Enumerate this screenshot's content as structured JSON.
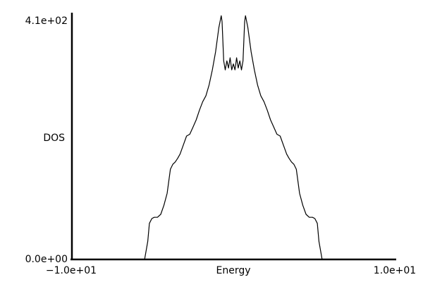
{
  "chart_data": {
    "type": "line",
    "xlabel": "Energy",
    "ylabel": "DOS",
    "xlim": [
      -10,
      10
    ],
    "ylim": [
      0,
      410
    ],
    "xtick_labels": [
      "−1.0e+01",
      "1.0e+01"
    ],
    "ytick_labels": [
      "0.0e+00",
      "4.1e+02"
    ],
    "grid": false,
    "line_color": "#000000",
    "series": [
      {
        "x": [
          -10.0,
          -5.5,
          -5.3,
          -5.2,
          -5.05,
          -4.9,
          -4.7,
          -4.5,
          -4.3,
          -4.1,
          -4.0,
          -3.9,
          -3.75,
          -3.6,
          -3.45,
          -3.3,
          -3.1,
          -2.9,
          -2.7,
          -2.5,
          -2.3,
          -2.1,
          -1.9,
          -1.7,
          -1.5,
          -1.3,
          -1.1,
          -0.9,
          -0.75,
          -0.7,
          -0.6,
          -0.5,
          -0.4,
          -0.3,
          -0.2,
          -0.1,
          0.0,
          0.1,
          0.2,
          0.3,
          0.4,
          0.5,
          0.6,
          0.7,
          0.75,
          0.9,
          1.1,
          1.3,
          1.5,
          1.7,
          1.9,
          2.1,
          2.3,
          2.5,
          2.7,
          2.9,
          3.1,
          3.3,
          3.45,
          3.6,
          3.75,
          3.9,
          4.0,
          4.1,
          4.3,
          4.5,
          4.7,
          4.9,
          5.05,
          5.2,
          5.3,
          5.5,
          10.0
        ],
        "y": [
          0,
          0,
          30,
          60,
          68,
          70,
          70,
          75,
          90,
          110,
          130,
          150,
          158,
          162,
          168,
          175,
          190,
          205,
          208,
          220,
          232,
          248,
          262,
          272,
          290,
          315,
          345,
          385,
          405,
          395,
          330,
          315,
          330,
          318,
          335,
          315,
          325,
          315,
          335,
          318,
          330,
          315,
          330,
          395,
          405,
          385,
          345,
          315,
          290,
          272,
          262,
          248,
          232,
          220,
          208,
          205,
          190,
          175,
          168,
          162,
          158,
          150,
          130,
          110,
          90,
          75,
          70,
          70,
          68,
          60,
          30,
          0,
          0
        ]
      }
    ]
  }
}
